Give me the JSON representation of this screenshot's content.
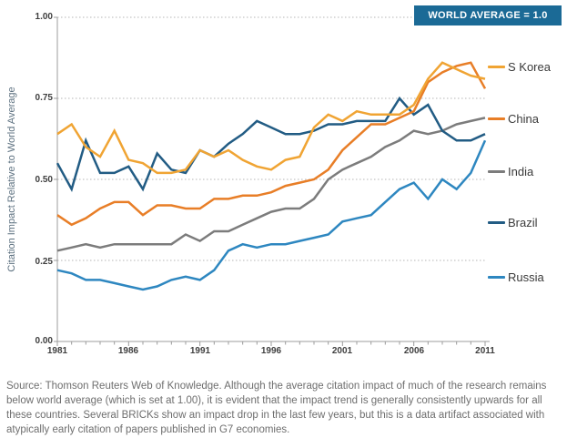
{
  "banner": {
    "label": "WORLD AVERAGE = 1.0",
    "color": "#1b6a96",
    "text_color": "#ffffff"
  },
  "axis": {
    "y_title": "Citation Impact Relative to World Average",
    "ytick_labels": [
      "1.00",
      "0.75",
      "0.50",
      "0.25",
      "0.00"
    ],
    "xtick_labels": [
      "1981",
      "1986",
      "1991",
      "1996",
      "2001",
      "2006",
      "2011"
    ]
  },
  "source_note": "Source: Thomson Reuters Web of Knowledge. Although the average citation impact of much of the research remains below world average (which is set at 1.00), it is evident that the impact trend is generally consistently upwards for all these countries. Several BRICKs show an impact drop in the last few years, but this is a data artifact associated with atypically early citation of papers published in G7 economies.",
  "chart_data": {
    "type": "line",
    "title": "",
    "xlabel": "",
    "ylabel": "Citation Impact Relative to World Average",
    "ylim": [
      0,
      1
    ],
    "ytick_step": 0.25,
    "grid": "horizontal dotted gridlines at 0.25 intervals",
    "legend_position": "right",
    "annotation": "WORLD AVERAGE = 1.0 (dotted reference line at y = 1.0)",
    "x": [
      1981,
      1982,
      1983,
      1984,
      1985,
      1986,
      1987,
      1988,
      1989,
      1990,
      1991,
      1992,
      1993,
      1994,
      1995,
      1996,
      1997,
      1998,
      1999,
      2000,
      2001,
      2002,
      2003,
      2004,
      2005,
      2006,
      2007,
      2008,
      2009,
      2010,
      2011
    ],
    "series": [
      {
        "name": "S Korea",
        "color": "#f0a433",
        "values": [
          0.64,
          0.67,
          0.6,
          0.57,
          0.65,
          0.56,
          0.55,
          0.52,
          0.52,
          0.53,
          0.59,
          0.57,
          0.59,
          0.56,
          0.54,
          0.53,
          0.56,
          0.57,
          0.66,
          0.7,
          0.68,
          0.71,
          0.7,
          0.7,
          0.7,
          0.73,
          0.81,
          0.86,
          0.84,
          0.82,
          0.81
        ]
      },
      {
        "name": "China",
        "color": "#e87e27",
        "values": [
          0.39,
          0.36,
          0.38,
          0.41,
          0.43,
          0.43,
          0.39,
          0.42,
          0.42,
          0.41,
          0.41,
          0.44,
          0.44,
          0.45,
          0.45,
          0.46,
          0.48,
          0.49,
          0.5,
          0.53,
          0.59,
          0.63,
          0.67,
          0.67,
          0.69,
          0.71,
          0.8,
          0.83,
          0.85,
          0.86,
          0.78
        ]
      },
      {
        "name": "India",
        "color": "#7c7c7c",
        "values": [
          0.28,
          0.29,
          0.3,
          0.29,
          0.3,
          0.3,
          0.3,
          0.3,
          0.3,
          0.33,
          0.31,
          0.34,
          0.34,
          0.36,
          0.38,
          0.4,
          0.41,
          0.41,
          0.44,
          0.5,
          0.53,
          0.55,
          0.57,
          0.6,
          0.62,
          0.65,
          0.64,
          0.65,
          0.67,
          0.68,
          0.69
        ]
      },
      {
        "name": "Brazil",
        "color": "#225c84",
        "values": [
          0.55,
          0.47,
          0.62,
          0.52,
          0.52,
          0.54,
          0.47,
          0.58,
          0.53,
          0.52,
          0.59,
          0.57,
          0.61,
          0.64,
          0.68,
          0.66,
          0.64,
          0.64,
          0.65,
          0.67,
          0.67,
          0.68,
          0.68,
          0.68,
          0.75,
          0.7,
          0.73,
          0.65,
          0.62,
          0.62,
          0.64
        ]
      },
      {
        "name": "Russia",
        "color": "#2e87c0",
        "values": [
          0.22,
          0.21,
          0.19,
          0.19,
          0.18,
          0.17,
          0.16,
          0.17,
          0.19,
          0.2,
          0.19,
          0.22,
          0.28,
          0.3,
          0.29,
          0.3,
          0.3,
          0.31,
          0.32,
          0.33,
          0.37,
          0.38,
          0.39,
          0.43,
          0.47,
          0.49,
          0.44,
          0.5,
          0.47,
          0.52,
          0.62
        ]
      }
    ]
  }
}
